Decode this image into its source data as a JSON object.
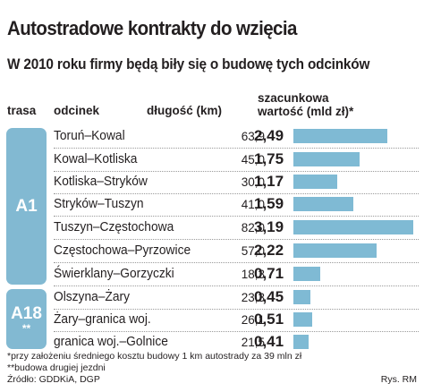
{
  "title": "Autostradowe kontrakty do wzięcia",
  "subtitle": "W 2010 roku firmy będą biły się o budowę tych odcinków",
  "headers": {
    "trasa": "trasa",
    "odcinek": "odcinek",
    "length": "długość (km)",
    "value_line1": "szacunkowa",
    "value_line2": "wartość (mld zł)*"
  },
  "routes": [
    {
      "code": "A1",
      "note": ""
    },
    {
      "code": "A18",
      "note": "**"
    }
  ],
  "chart_data": {
    "type": "bar",
    "orientation": "horizontal",
    "title": "Autostradowe kontrakty do wzięcia",
    "subtitle": "W 2010 roku firmy będą biły się o budowę tych odcinków",
    "categories": [
      "Toruń–Kowal",
      "Kowal–Kotliska",
      "Kotliska–Stryków",
      "Stryków–Tuszyn",
      "Tuszyn–Częstochowa",
      "Częstochowa–Pyrzowice",
      "Świerklany–Gorzyczki",
      "Olszyna–Żary",
      "Żary–granica woj.",
      "granica woj.–Golnice"
    ],
    "route": [
      "A1",
      "A1",
      "A1",
      "A1",
      "A1",
      "A1",
      "A1",
      "A18",
      "A18",
      "A18"
    ],
    "length_km": [
      "63,9",
      "45,0",
      "30,0",
      "41,0",
      "82,0",
      "57,0",
      "18,3",
      "23,3",
      "26,1",
      "21,5"
    ],
    "value_labels": [
      "2,49",
      "1,75",
      "1,17",
      "1,59",
      "3,19",
      "2,22",
      "0,71",
      "0,45",
      "0,51",
      "0,41"
    ],
    "series": [
      {
        "name": "szacunkowa wartość (mld zł)*",
        "values": [
          2.49,
          1.75,
          1.17,
          1.59,
          3.19,
          2.22,
          0.71,
          0.45,
          0.51,
          0.41
        ]
      }
    ],
    "xlim": [
      0,
      3.19
    ],
    "bar_color": "#7fbad4",
    "route_color": "#82b9d2",
    "grid": false,
    "legend": "none"
  },
  "footnotes": {
    "f1": "*przy założeniu średniego kosztu budowy 1 km autostrady za 39 mln zł",
    "f2": "**budowa drugiej jezdni",
    "f3": "Źródło: GDDKiA, DGP"
  },
  "credit": "Rys. RM"
}
